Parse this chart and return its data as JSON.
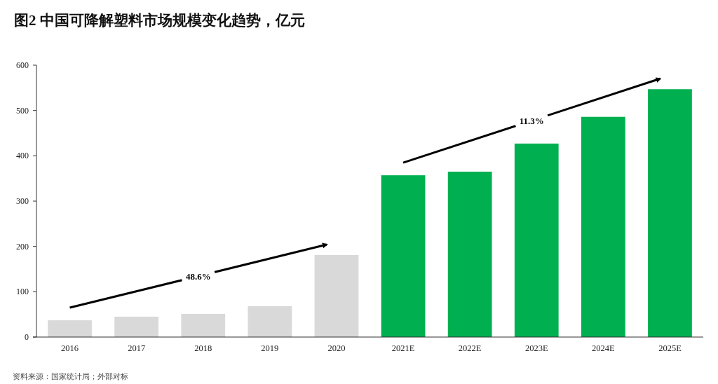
{
  "chart_data": {
    "type": "bar",
    "title": "图2 中国可降解塑料市场规模变化趋势，亿元",
    "categories": [
      "2016",
      "2017",
      "2018",
      "2019",
      "2020",
      "2021E",
      "2022E",
      "2023E",
      "2024E",
      "2025E"
    ],
    "values": [
      37,
      45,
      51,
      68,
      181,
      357,
      365,
      427,
      486,
      547
    ],
    "colors": [
      "#d9d9d9",
      "#d9d9d9",
      "#d9d9d9",
      "#d9d9d9",
      "#d9d9d9",
      "#00b050",
      "#00b050",
      "#00b050",
      "#00b050",
      "#00b050"
    ],
    "ylim": [
      0,
      600
    ],
    "yticks": [
      0,
      100,
      200,
      300,
      400,
      500,
      600
    ],
    "grid": false,
    "annotations": [
      "48.6%",
      "11.3%",
      "资料来源：国家统计局；外部对标"
    ]
  }
}
